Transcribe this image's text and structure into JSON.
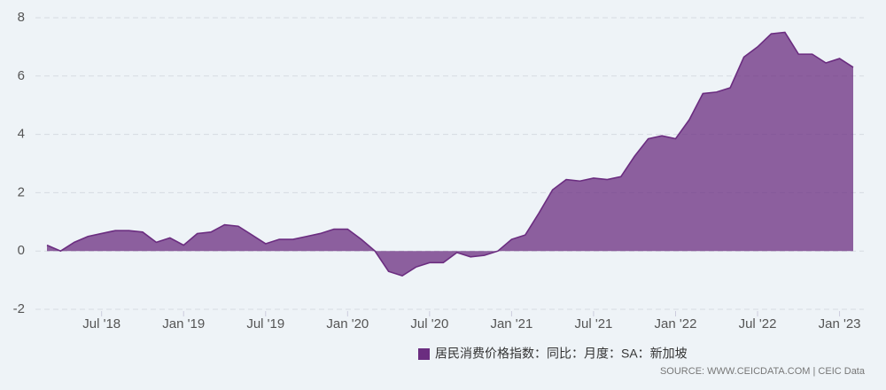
{
  "chart_data": {
    "type": "area",
    "x": [
      "2018-03",
      "2018-04",
      "2018-05",
      "2018-06",
      "2018-07",
      "2018-08",
      "2018-09",
      "2018-10",
      "2018-11",
      "2018-12",
      "2019-01",
      "2019-02",
      "2019-03",
      "2019-04",
      "2019-05",
      "2019-06",
      "2019-07",
      "2019-08",
      "2019-09",
      "2019-10",
      "2019-11",
      "2019-12",
      "2020-01",
      "2020-02",
      "2020-03",
      "2020-04",
      "2020-05",
      "2020-06",
      "2020-07",
      "2020-08",
      "2020-09",
      "2020-10",
      "2020-11",
      "2020-12",
      "2021-01",
      "2021-02",
      "2021-03",
      "2021-04",
      "2021-05",
      "2021-06",
      "2021-07",
      "2021-08",
      "2021-09",
      "2021-10",
      "2021-11",
      "2021-12",
      "2022-01",
      "2022-02",
      "2022-03",
      "2022-04",
      "2022-05",
      "2022-06",
      "2022-07",
      "2022-08",
      "2022-09",
      "2022-10",
      "2022-11",
      "2022-12",
      "2023-01",
      "2023-02"
    ],
    "series": [
      {
        "name": "居民消费价格指数：同比：月度：SA：新加坡",
        "color": "#6b2d80",
        "values": [
          0.2,
          0.0,
          0.3,
          0.5,
          0.6,
          0.7,
          0.7,
          0.65,
          0.3,
          0.45,
          0.2,
          0.6,
          0.65,
          0.9,
          0.85,
          0.55,
          0.25,
          0.4,
          0.4,
          0.5,
          0.6,
          0.75,
          0.75,
          0.4,
          0.0,
          -0.7,
          -0.85,
          -0.55,
          -0.4,
          -0.4,
          -0.05,
          -0.2,
          -0.15,
          0.0,
          0.4,
          0.55,
          1.3,
          2.1,
          2.45,
          2.4,
          2.5,
          2.45,
          2.55,
          3.25,
          3.85,
          3.95,
          3.85,
          4.5,
          5.4,
          5.45,
          5.6,
          6.65,
          7.0,
          7.45,
          7.5,
          6.75,
          6.75,
          6.45,
          6.6,
          6.3
        ]
      }
    ],
    "xlim": [
      "2018-03",
      "2023-02"
    ],
    "xticks": [
      {
        "value": "2018-07",
        "label": "Jul '18"
      },
      {
        "value": "2019-01",
        "label": "Jan '19"
      },
      {
        "value": "2019-07",
        "label": "Jul '19"
      },
      {
        "value": "2020-01",
        "label": "Jan '20"
      },
      {
        "value": "2020-07",
        "label": "Jul '20"
      },
      {
        "value": "2021-01",
        "label": "Jan '21"
      },
      {
        "value": "2021-07",
        "label": "Jul '21"
      },
      {
        "value": "2022-01",
        "label": "Jan '22"
      },
      {
        "value": "2022-07",
        "label": "Jul '22"
      },
      {
        "value": "2023-01",
        "label": "Jan '23"
      }
    ],
    "ylim": [
      -2,
      8
    ],
    "yticks": [
      -2,
      0,
      2,
      4,
      6,
      8
    ],
    "grid": true,
    "source": "SOURCE: WWW.CEICDATA.COM | CEIC Data"
  }
}
